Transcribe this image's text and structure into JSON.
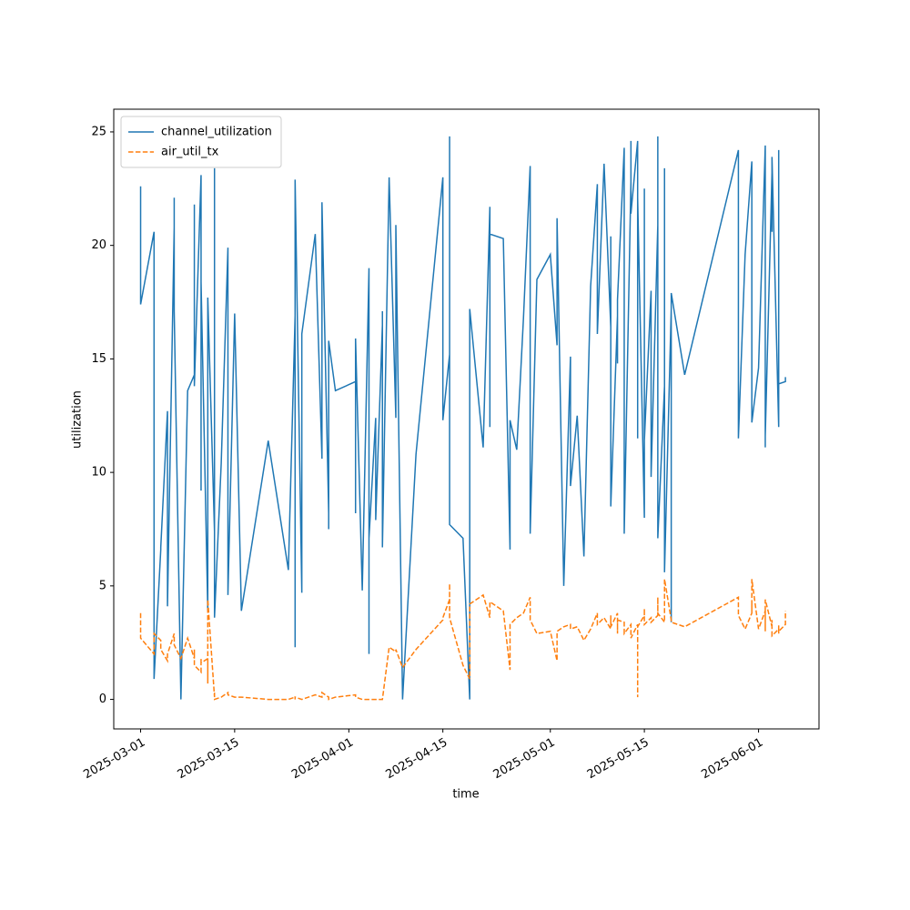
{
  "chart_data": {
    "type": "line",
    "x": [
      "2025-03-01",
      "2025-03-01",
      "2025-03-01",
      "2025-03-03",
      "2025-03-03",
      "2025-03-04",
      "2025-03-04",
      "2025-03-05",
      "2025-03-05",
      "2025-03-06",
      "2025-03-06",
      "2025-03-06",
      "2025-03-07",
      "2025-03-08",
      "2025-03-09",
      "2025-03-09",
      "2025-03-09",
      "2025-03-10",
      "2025-03-10",
      "2025-03-10",
      "2025-03-11",
      "2025-03-11",
      "2025-03-11",
      "2025-03-11",
      "2025-03-12",
      "2025-03-12",
      "2025-03-12",
      "2025-03-13",
      "2025-03-14",
      "2025-03-14",
      "2025-03-15",
      "2025-03-16",
      "2025-03-20",
      "2025-03-23",
      "2025-03-24",
      "2025-03-24",
      "2025-03-24",
      "2025-03-25",
      "2025-03-25",
      "2025-03-27",
      "2025-03-28",
      "2025-03-28",
      "2025-03-29",
      "2025-03-29",
      "2025-03-29",
      "2025-03-30",
      "2025-04-02",
      "2025-04-02",
      "2025-04-02",
      "2025-04-03",
      "2025-04-04",
      "2025-04-04",
      "2025-04-04",
      "2025-04-04",
      "2025-04-05",
      "2025-04-05",
      "2025-04-06",
      "2025-04-06",
      "2025-04-06",
      "2025-04-07",
      "2025-04-08",
      "2025-04-08",
      "2025-04-09",
      "2025-04-11",
      "2025-04-15",
      "2025-04-15",
      "2025-04-16",
      "2025-04-16",
      "2025-04-16",
      "2025-04-18",
      "2025-04-19",
      "2025-04-19",
      "2025-04-21",
      "2025-04-22",
      "2025-04-22",
      "2025-04-22",
      "2025-04-24",
      "2025-04-25",
      "2025-04-25",
      "2025-04-26",
      "2025-04-27",
      "2025-04-28",
      "2025-04-28",
      "2025-04-29",
      "2025-05-01",
      "2025-05-02",
      "2025-05-02",
      "2025-05-03",
      "2025-05-04",
      "2025-05-04",
      "2025-05-05",
      "2025-05-06",
      "2025-05-07",
      "2025-05-08",
      "2025-05-08",
      "2025-05-09",
      "2025-05-10",
      "2025-05-10",
      "2025-05-10",
      "2025-05-11",
      "2025-05-11",
      "2025-05-11",
      "2025-05-12",
      "2025-05-12",
      "2025-05-13",
      "2025-05-13",
      "2025-05-13",
      "2025-05-14",
      "2025-05-14",
      "2025-05-14",
      "2025-05-15",
      "2025-05-15",
      "2025-05-15",
      "2025-05-16",
      "2025-05-16",
      "2025-05-17",
      "2025-05-17",
      "2025-05-17",
      "2025-05-18",
      "2025-05-18",
      "2025-05-18",
      "2025-05-19",
      "2025-05-19",
      "2025-05-19",
      "2025-05-21",
      "2025-05-29",
      "2025-05-29",
      "2025-05-30",
      "2025-05-31",
      "2025-05-31",
      "2025-05-31",
      "2025-05-31",
      "2025-06-01",
      "2025-06-02",
      "2025-06-02",
      "2025-06-02",
      "2025-06-02",
      "2025-06-03",
      "2025-06-03",
      "2025-06-03",
      "2025-06-04",
      "2025-06-04",
      "2025-06-04",
      "2025-06-04",
      "2025-06-05",
      "2025-06-05"
    ],
    "series": [
      {
        "name": "channel_utilization",
        "color": "#1f77b4",
        "dash": false,
        "values": [
          20.8,
          22.6,
          17.4,
          20.6,
          0.9,
          6.6,
          6.7,
          12.7,
          4.1,
          20.8,
          22.1,
          17.1,
          0,
          13.6,
          14.3,
          21.8,
          13.8,
          23.1,
          9.2,
          18.4,
          3.9,
          7.6,
          11,
          17.7,
          7.4,
          23.4,
          3.6,
          10.4,
          19.9,
          4.6,
          17,
          3.9,
          11.4,
          5.7,
          16.9,
          2.3,
          22.9,
          4.7,
          16.1,
          20.5,
          10.6,
          21.9,
          8.2,
          7.5,
          15.8,
          13.6,
          14,
          8.2,
          15.9,
          4.8,
          19,
          2,
          15.8,
          7.1,
          12.4,
          7.9,
          16.5,
          17.1,
          6.7,
          23,
          12.4,
          20.9,
          0,
          10.8,
          23,
          12.3,
          15.2,
          24.8,
          7.7,
          7.1,
          0,
          17.2,
          11.1,
          21.7,
          12,
          20.5,
          20.3,
          6.6,
          12.3,
          11,
          16.8,
          23.5,
          7.3,
          18.5,
          19.6,
          15.6,
          21.2,
          5,
          15.1,
          9.4,
          12.5,
          6.3,
          18.2,
          22.7,
          16.1,
          23.6,
          16.4,
          20.4,
          8.5,
          16.9,
          14.8,
          17.6,
          24.3,
          7.3,
          22.8,
          24.6,
          21.4,
          24.6,
          11.5,
          22.1,
          8,
          22.5,
          11.4,
          18,
          9.8,
          20.9,
          24.8,
          7.1,
          13.8,
          23.4,
          5.6,
          17.2,
          3.4,
          17.9,
          14.3,
          24.2,
          11.5,
          19.6,
          23.7,
          19.2,
          23.3,
          12.2,
          14.6,
          24.4,
          11.1,
          24.2,
          11.6,
          23.2,
          20.6,
          23.9,
          12,
          21.7,
          24.2,
          13.9,
          14,
          14.2
        ]
      },
      {
        "name": "air_util_tx",
        "color": "#ff7f0e",
        "dash": true,
        "values": [
          3.8,
          3.3,
          2.7,
          2.0,
          2.9,
          2.6,
          2.2,
          1.7,
          2.0,
          2.9,
          2.8,
          2.4,
          1.8,
          2.7,
          1.8,
          2.2,
          1.5,
          1.2,
          1.8,
          1.6,
          1.8,
          1.3,
          0.7,
          4.4,
          0.1,
          0.3,
          0,
          0.1,
          0.3,
          0.2,
          0.1,
          0.1,
          0,
          0,
          0.1,
          0,
          0.1,
          0,
          0,
          0.2,
          0.1,
          0.3,
          0.1,
          0.1,
          0,
          0.1,
          0.2,
          0.1,
          0.1,
          0,
          0,
          0,
          0,
          0,
          0,
          0,
          0,
          0,
          0,
          2.3,
          2.1,
          2.2,
          1.4,
          2.2,
          3.5,
          3.6,
          4.4,
          5.1,
          3.6,
          1.5,
          0.9,
          4.2,
          4.6,
          3.6,
          4.3,
          4.3,
          3.9,
          1.3,
          3.3,
          3.6,
          3.8,
          4.5,
          3.5,
          2.9,
          3.0,
          1.7,
          3.0,
          3.2,
          3.3,
          3.1,
          3.2,
          2.6,
          3.1,
          3.8,
          3.3,
          3.6,
          3.1,
          3.7,
          3.2,
          3.8,
          2.9,
          3.5,
          3.4,
          2.9,
          3.3,
          3.1,
          2.7,
          3.3,
          0.1,
          3.2,
          3.7,
          4.0,
          3.3,
          3.6,
          3.4,
          3.7,
          4.5,
          3.8,
          3.4,
          4.0,
          5.3,
          3.5,
          3.5,
          3.4,
          3.2,
          4.5,
          3.7,
          3.1,
          3.8,
          4.3,
          3.9,
          5.3,
          3.1,
          3.9,
          3.0,
          3.6,
          4.4,
          3.2,
          3.5,
          2.8,
          3.1,
          2.9,
          3.3,
          3.0,
          3.3,
          3.9
        ]
      }
    ],
    "xlabel": "time",
    "ylabel": "utilization",
    "xlim": [
      "2025-02-25",
      "2025-06-10"
    ],
    "xticks": [
      "2025-03-01",
      "2025-03-15",
      "2025-04-01",
      "2025-04-15",
      "2025-05-01",
      "2025-05-15",
      "2025-06-01"
    ],
    "ylim": [
      -1.3,
      26
    ],
    "yticks": [
      0,
      5,
      10,
      15,
      20,
      25
    ],
    "legend": "upper left"
  }
}
